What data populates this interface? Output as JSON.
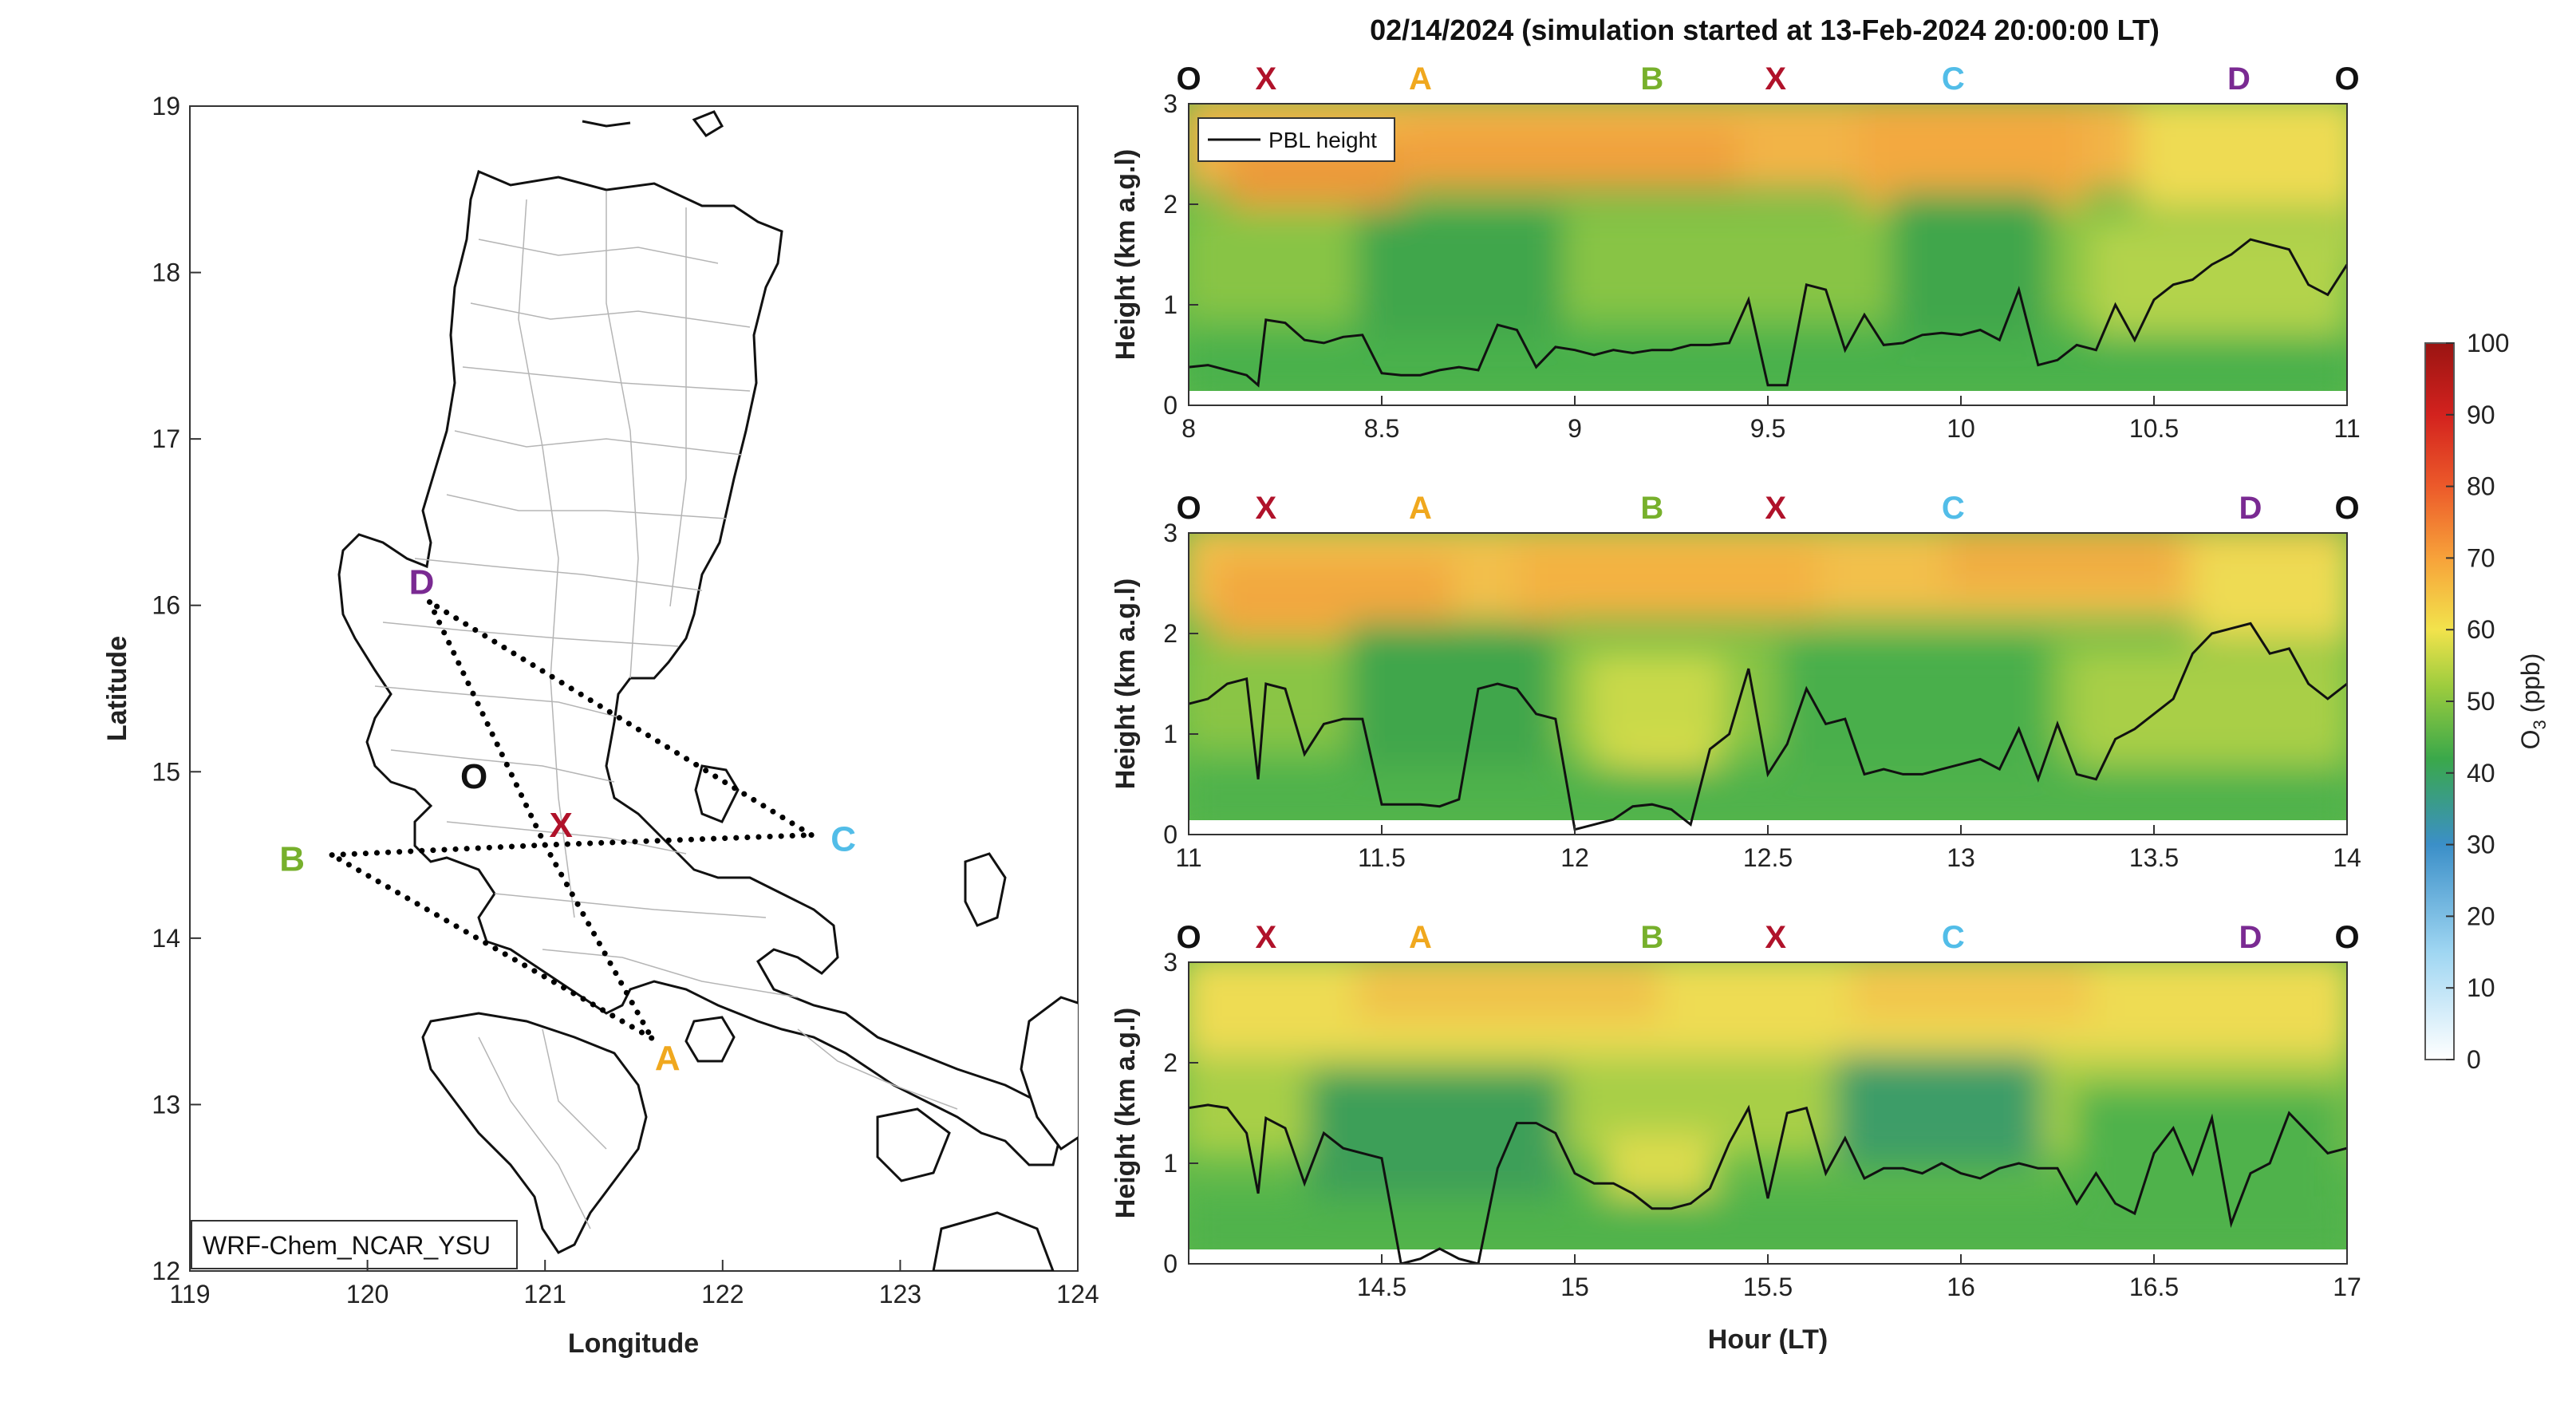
{
  "title": "02/14/2024 (simulation started at 13-Feb-2024 20:00:00 LT)",
  "colors": {
    "label_O": "#111111",
    "label_X": "#b0122a",
    "label_A": "#f0a81e",
    "label_B": "#77b02c",
    "label_C": "#52bde8",
    "label_D": "#7a2a92"
  },
  "chart_data": [
    {
      "type": "map",
      "xlabel": "Longitude",
      "ylabel": "Latitude",
      "xlim": [
        119,
        124
      ],
      "ylim": [
        12,
        19
      ],
      "xticks": [
        "119",
        "120",
        "121",
        "122",
        "123",
        "124"
      ],
      "yticks": [
        "12",
        "13",
        "14",
        "15",
        "16",
        "17",
        "18",
        "19"
      ],
      "model_label": "WRF-Chem_NCAR_YSU",
      "points": [
        {
          "name": "O",
          "lon": 120.6,
          "lat": 14.9
        },
        {
          "name": "X",
          "lon": 121.0,
          "lat": 14.56
        },
        {
          "name": "A",
          "lon": 121.6,
          "lat": 13.4
        },
        {
          "name": "B",
          "lon": 119.8,
          "lat": 14.5
        },
        {
          "name": "C",
          "lon": 122.5,
          "lat": 14.62
        },
        {
          "name": "D",
          "lon": 120.35,
          "lat": 16.02
        }
      ],
      "route": [
        "X",
        "A",
        "B",
        "X",
        "C",
        "D",
        "X"
      ]
    },
    {
      "type": "heatmap",
      "ylabel": "Height (km a.g.l)",
      "xlim": [
        8,
        11
      ],
      "ylim": [
        0,
        3
      ],
      "xticks": [
        "8",
        "8.5",
        "9",
        "9.5",
        "10",
        "10.5",
        "11"
      ],
      "yticks": [
        "0",
        "1",
        "2",
        "3"
      ],
      "legend": "PBL height",
      "top_labels": [
        {
          "name": "O",
          "x": 8.0
        },
        {
          "name": "X",
          "x": 8.2
        },
        {
          "name": "A",
          "x": 8.6
        },
        {
          "name": "B",
          "x": 9.2
        },
        {
          "name": "X",
          "x": 9.52
        },
        {
          "name": "C",
          "x": 9.98
        },
        {
          "name": "D",
          "x": 10.72
        },
        {
          "name": "O",
          "x": 11.0
        }
      ],
      "pbl_height": {
        "x": [
          8.0,
          8.05,
          8.1,
          8.15,
          8.18,
          8.2,
          8.25,
          8.3,
          8.35,
          8.4,
          8.45,
          8.5,
          8.55,
          8.6,
          8.65,
          8.7,
          8.75,
          8.8,
          8.85,
          8.9,
          8.95,
          9.0,
          9.05,
          9.1,
          9.15,
          9.2,
          9.25,
          9.3,
          9.35,
          9.4,
          9.45,
          9.5,
          9.55,
          9.6,
          9.65,
          9.7,
          9.75,
          9.8,
          9.85,
          9.9,
          9.95,
          10.0,
          10.05,
          10.1,
          10.15,
          10.2,
          10.25,
          10.3,
          10.35,
          10.4,
          10.45,
          10.5,
          10.55,
          10.6,
          10.65,
          10.7,
          10.75,
          10.8,
          10.85,
          10.9,
          10.95,
          11.0
        ],
        "y": [
          0.38,
          0.4,
          0.35,
          0.3,
          0.2,
          0.85,
          0.82,
          0.65,
          0.62,
          0.68,
          0.7,
          0.32,
          0.3,
          0.3,
          0.35,
          0.38,
          0.35,
          0.8,
          0.75,
          0.38,
          0.58,
          0.55,
          0.5,
          0.55,
          0.52,
          0.55,
          0.55,
          0.6,
          0.6,
          0.62,
          1.05,
          0.2,
          0.2,
          1.2,
          1.15,
          0.55,
          0.9,
          0.6,
          0.62,
          0.7,
          0.72,
          0.7,
          0.75,
          0.65,
          1.15,
          0.4,
          0.45,
          0.6,
          0.55,
          1.0,
          0.65,
          1.05,
          1.2,
          1.25,
          1.4,
          1.5,
          1.65,
          1.6,
          1.55,
          1.2,
          1.1,
          1.4
        ]
      },
      "o3_field_description": "O3 curtain: ~40-50 ppb in lower layers, ~55-70 ppb aloft"
    },
    {
      "type": "heatmap",
      "ylabel": "Height (km a.g.l)",
      "xlim": [
        11,
        14
      ],
      "ylim": [
        0,
        3
      ],
      "xticks": [
        "11",
        "11.5",
        "12",
        "12.5",
        "13",
        "13.5",
        "14"
      ],
      "yticks": [
        "0",
        "1",
        "2",
        "3"
      ],
      "top_labels": [
        {
          "name": "O",
          "x": 11.0
        },
        {
          "name": "X",
          "x": 11.2
        },
        {
          "name": "A",
          "x": 11.6
        },
        {
          "name": "B",
          "x": 12.2
        },
        {
          "name": "X",
          "x": 12.52
        },
        {
          "name": "C",
          "x": 12.98
        },
        {
          "name": "D",
          "x": 13.75
        },
        {
          "name": "O",
          "x": 14.0
        }
      ],
      "pbl_height": {
        "x": [
          11.0,
          11.05,
          11.1,
          11.15,
          11.18,
          11.2,
          11.25,
          11.3,
          11.35,
          11.4,
          11.45,
          11.5,
          11.55,
          11.6,
          11.65,
          11.7,
          11.75,
          11.8,
          11.85,
          11.9,
          11.95,
          12.0,
          12.05,
          12.1,
          12.15,
          12.2,
          12.25,
          12.3,
          12.35,
          12.4,
          12.45,
          12.5,
          12.55,
          12.6,
          12.65,
          12.7,
          12.75,
          12.8,
          12.85,
          12.9,
          12.95,
          13.0,
          13.05,
          13.1,
          13.15,
          13.2,
          13.25,
          13.3,
          13.35,
          13.4,
          13.45,
          13.5,
          13.55,
          13.6,
          13.65,
          13.7,
          13.75,
          13.8,
          13.85,
          13.9,
          13.95,
          14.0
        ],
        "y": [
          1.3,
          1.35,
          1.5,
          1.55,
          0.55,
          1.5,
          1.45,
          0.8,
          1.1,
          1.15,
          1.15,
          0.3,
          0.3,
          0.3,
          0.28,
          0.35,
          1.45,
          1.5,
          1.45,
          1.2,
          1.15,
          0.05,
          0.1,
          0.15,
          0.28,
          0.3,
          0.25,
          0.1,
          0.85,
          1.0,
          1.65,
          0.6,
          0.9,
          1.45,
          1.1,
          1.15,
          0.6,
          0.65,
          0.6,
          0.6,
          0.65,
          0.7,
          0.75,
          0.65,
          1.05,
          0.55,
          1.1,
          0.6,
          0.55,
          0.95,
          1.05,
          1.2,
          1.35,
          1.8,
          2.0,
          2.05,
          2.1,
          1.8,
          1.85,
          1.5,
          1.35,
          1.5
        ]
      },
      "o3_field_description": "O3 curtain: ~40-50 ppb in lower layers, ~55-70 ppb aloft"
    },
    {
      "type": "heatmap",
      "xlabel": "Hour (LT)",
      "ylabel": "Height (km a.g.l)",
      "xlim": [
        14,
        17
      ],
      "ylim": [
        0,
        3
      ],
      "xticks": [
        "14.5",
        "15",
        "15.5",
        "16",
        "16.5",
        "17"
      ],
      "yticks": [
        "0",
        "1",
        "2",
        "3"
      ],
      "top_labels": [
        {
          "name": "O",
          "x": 14.0
        },
        {
          "name": "X",
          "x": 14.2
        },
        {
          "name": "A",
          "x": 14.6
        },
        {
          "name": "B",
          "x": 15.2
        },
        {
          "name": "X",
          "x": 15.52
        },
        {
          "name": "C",
          "x": 15.98
        },
        {
          "name": "D",
          "x": 16.75
        },
        {
          "name": "O",
          "x": 17.0
        }
      ],
      "pbl_height": {
        "x": [
          14.0,
          14.05,
          14.1,
          14.15,
          14.18,
          14.2,
          14.25,
          14.3,
          14.35,
          14.4,
          14.45,
          14.5,
          14.55,
          14.6,
          14.65,
          14.7,
          14.75,
          14.8,
          14.85,
          14.9,
          14.95,
          15.0,
          15.05,
          15.1,
          15.15,
          15.2,
          15.25,
          15.3,
          15.35,
          15.4,
          15.45,
          15.5,
          15.55,
          15.6,
          15.65,
          15.7,
          15.75,
          15.8,
          15.85,
          15.9,
          15.95,
          16.0,
          16.05,
          16.1,
          16.15,
          16.2,
          16.25,
          16.3,
          16.35,
          16.4,
          16.45,
          16.5,
          16.55,
          16.6,
          16.65,
          16.7,
          16.75,
          16.8,
          16.85,
          16.9,
          16.95,
          17.0
        ],
        "y": [
          1.55,
          1.58,
          1.55,
          1.3,
          0.7,
          1.45,
          1.35,
          0.8,
          1.3,
          1.15,
          1.1,
          1.05,
          0.0,
          0.05,
          0.15,
          0.05,
          0.0,
          0.95,
          1.4,
          1.4,
          1.3,
          0.9,
          0.8,
          0.8,
          0.7,
          0.55,
          0.55,
          0.6,
          0.75,
          1.2,
          1.55,
          0.65,
          1.5,
          1.55,
          0.9,
          1.25,
          0.85,
          0.95,
          0.95,
          0.9,
          1.0,
          0.9,
          0.85,
          0.95,
          1.0,
          0.95,
          0.95,
          0.6,
          0.9,
          0.6,
          0.5,
          1.1,
          1.35,
          0.9,
          1.45,
          0.4,
          0.9,
          1.0,
          1.5,
          1.3,
          1.1,
          1.15
        ]
      },
      "o3_field_description": "O3 curtain: ~40-50 ppb in lower layers, ~55-65 ppb aloft"
    },
    {
      "type": "colorbar",
      "label": "O",
      "label_sub": "3",
      "label_unit": " (ppb)",
      "ticks": [
        "0",
        "10",
        "20",
        "30",
        "40",
        "50",
        "60",
        "70",
        "80",
        "90",
        "100"
      ],
      "range": [
        0,
        100
      ]
    }
  ]
}
